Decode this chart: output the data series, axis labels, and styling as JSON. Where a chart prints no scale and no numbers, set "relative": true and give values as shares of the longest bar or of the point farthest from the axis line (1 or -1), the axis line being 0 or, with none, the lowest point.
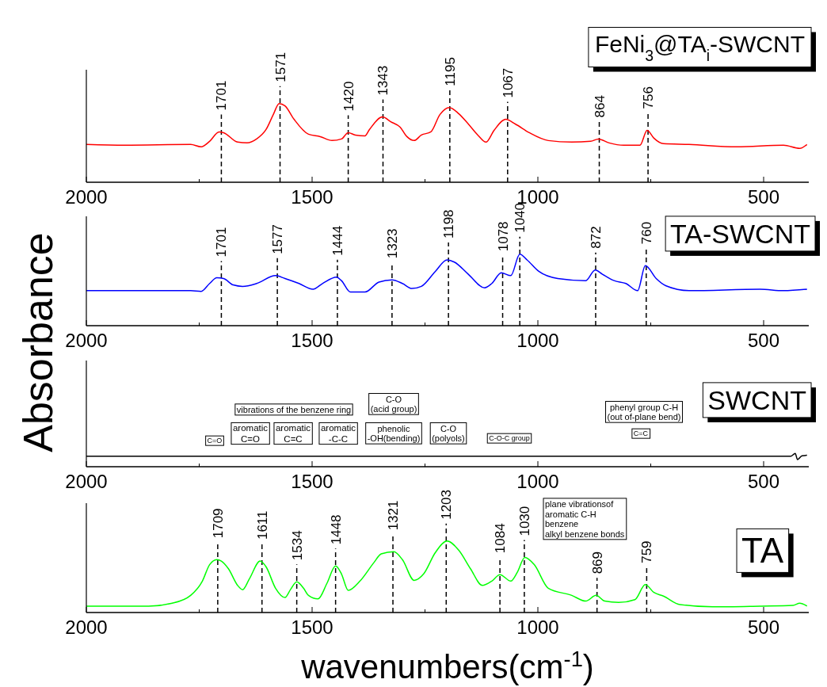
{
  "chart_data": [
    {
      "type": "line",
      "title": "FeNi$_{3}$@TA$_{i}$-SWCNT",
      "ylabel": "Absorbance",
      "relative": true,
      "tick_labels": "x",
      "color": "#ff0000",
      "x": [
        2000,
        1915,
        1769,
        1746,
        1727,
        1706,
        1696,
        1665,
        1644,
        1623,
        1602,
        1586,
        1573,
        1560,
        1540,
        1508,
        1482,
        1456,
        1435,
        1420,
        1404,
        1383,
        1373,
        1344,
        1326,
        1305,
        1290,
        1274,
        1258,
        1237,
        1217,
        1196,
        1175,
        1154,
        1133,
        1115,
        1097,
        1071,
        1050,
        1019,
        977,
        925,
        883,
        866,
        842,
        810,
        774,
        758,
        743,
        722,
        665,
        560,
        456,
        420,
        404
      ],
      "values": [
        0.48,
        0.47,
        0.48,
        0.45,
        0.52,
        0.64,
        0.63,
        0.51,
        0.5,
        0.55,
        0.67,
        0.86,
        1.0,
        0.97,
        0.8,
        0.61,
        0.58,
        0.53,
        0.55,
        0.63,
        0.6,
        0.59,
        0.67,
        0.83,
        0.77,
        0.7,
        0.58,
        0.53,
        0.6,
        0.64,
        0.86,
        0.95,
        0.87,
        0.74,
        0.6,
        0.51,
        0.66,
        0.8,
        0.74,
        0.63,
        0.53,
        0.51,
        0.52,
        0.55,
        0.5,
        0.47,
        0.47,
        0.66,
        0.56,
        0.49,
        0.48,
        0.45,
        0.47,
        0.43,
        0.48
      ],
      "xlim": [
        2000,
        400
      ],
      "xticks": [
        2000,
        {
          "value": 1750,
          "label": null
        },
        1500,
        {
          "value": 1250,
          "label": null
        },
        1000,
        {
          "value": 750,
          "label": null
        },
        500
      ],
      "ref_lines": [
        {
          "axis": "x",
          "value": 1701,
          "label": "1701",
          "line_style": "dashed"
        },
        {
          "axis": "x",
          "value": 1571,
          "label": "1571",
          "line_style": "dashed"
        },
        {
          "axis": "x",
          "value": 1420,
          "label": "1420",
          "line_style": "dashed"
        },
        {
          "axis": "x",
          "value": 1343,
          "label": "1343",
          "line_style": "dashed"
        },
        {
          "axis": "x",
          "value": 1195,
          "label": "1195",
          "line_style": "dashed"
        },
        {
          "axis": "x",
          "value": 1067,
          "label": "1067",
          "line_style": "dashed"
        },
        {
          "axis": "x",
          "value": 864,
          "label": "864",
          "line_style": "dashed"
        },
        {
          "axis": "x",
          "value": 756,
          "label": "756",
          "line_style": "dashed"
        }
      ]
    },
    {
      "type": "line",
      "title": "TA-SWCNT",
      "relative": true,
      "tick_labels": "x",
      "color": "#0000ff",
      "x": [
        2000,
        1769,
        1746,
        1727,
        1711,
        1696,
        1675,
        1654,
        1623,
        1581,
        1560,
        1529,
        1498,
        1477,
        1446,
        1435,
        1415,
        1383,
        1352,
        1323,
        1300,
        1279,
        1258,
        1227,
        1201,
        1185,
        1154,
        1118,
        1102,
        1081,
        1060,
        1040,
        1024,
        998,
        956,
        894,
        873,
        857,
        831,
        805,
        779,
        762,
        738,
        717,
        665,
        508,
        456,
        404
      ],
      "values": [
        0.49,
        0.49,
        0.48,
        0.59,
        0.67,
        0.66,
        0.57,
        0.55,
        0.59,
        0.7,
        0.66,
        0.59,
        0.51,
        0.59,
        0.68,
        0.63,
        0.47,
        0.47,
        0.61,
        0.64,
        0.59,
        0.52,
        0.55,
        0.76,
        0.92,
        0.89,
        0.72,
        0.53,
        0.59,
        0.74,
        0.7,
        1.0,
        0.92,
        0.76,
        0.66,
        0.63,
        0.78,
        0.72,
        0.63,
        0.59,
        0.49,
        0.84,
        0.66,
        0.56,
        0.49,
        0.51,
        0.49,
        0.51
      ],
      "xlim": [
        2000,
        400
      ],
      "xticks": [
        2000,
        {
          "value": 1750,
          "label": null
        },
        1500,
        {
          "value": 1250,
          "label": null
        },
        1000,
        {
          "value": 750,
          "label": null
        },
        500
      ],
      "ref_lines": [
        {
          "axis": "x",
          "value": 1701,
          "label": "1701",
          "line_style": "dashed"
        },
        {
          "axis": "x",
          "value": 1577,
          "label": "1577",
          "line_style": "dashed"
        },
        {
          "axis": "x",
          "value": 1444,
          "label": "1444",
          "line_style": "dashed"
        },
        {
          "axis": "x",
          "value": 1323,
          "label": "1323",
          "line_style": "dashed"
        },
        {
          "axis": "x",
          "value": 1198,
          "label": "1198",
          "line_style": "dashed"
        },
        {
          "axis": "x",
          "value": 1078,
          "label": "1078",
          "line_style": "dashed"
        },
        {
          "axis": "x",
          "value": 1040,
          "label": "1040",
          "line_style": "dashed"
        },
        {
          "axis": "x",
          "value": 872,
          "label": "872",
          "line_style": "dashed"
        },
        {
          "axis": "x",
          "value": 760,
          "label": "760",
          "line_style": "dashed"
        }
      ]
    },
    {
      "type": "line",
      "title": "SWCNT",
      "relative": true,
      "tick_labels": "x",
      "color": "#000000",
      "x": [
        2000,
        1750,
        1500,
        1250,
        1000,
        750,
        600,
        500,
        440,
        430,
        425,
        415,
        404
      ],
      "values": [
        0.79,
        0.79,
        0.79,
        0.79,
        0.79,
        0.79,
        0.79,
        0.79,
        0.79,
        1.0,
        0.54,
        0.82,
        0.86
      ],
      "xlim": [
        2000,
        400
      ],
      "xticks": [
        2000,
        {
          "value": 1750,
          "label": null
        },
        1500,
        {
          "value": 1250,
          "label": null
        },
        1000,
        {
          "value": 750,
          "label": null
        },
        500
      ],
      "annotations": [
        "vibrations of the benzene ring",
        "C-O\n(acid group)",
        "C=O",
        "aromatic\nC=O",
        "aromatic\nC=C",
        "aromatic\n-C-C",
        "phenolic\n-OH(bending)",
        "C-O\n(polyols)",
        "C-O-C group",
        "phenyl group C-H\n(out of-plane bend)",
        "C=C"
      ]
    },
    {
      "type": "line",
      "title": "TA",
      "xlabel": "wavenumbers(cm$^{-1}$)",
      "relative": true,
      "tick_labels": "x",
      "color": "#00ff00",
      "x": [
        2000,
        1862,
        1810,
        1769,
        1743,
        1727,
        1711,
        1701,
        1685,
        1665,
        1654,
        1639,
        1615,
        1602,
        1581,
        1560,
        1548,
        1534,
        1519,
        1508,
        1487,
        1467,
        1448,
        1435,
        1420,
        1394,
        1363,
        1347,
        1319,
        1300,
        1274,
        1253,
        1227,
        1201,
        1175,
        1149,
        1123,
        1102,
        1084,
        1060,
        1045,
        1029,
        1008,
        977,
        925,
        894,
        871,
        852,
        821,
        785,
        762,
        743,
        722,
        685,
        613,
        508,
        435,
        420,
        404
      ],
      "values": [
        0.09,
        0.09,
        0.13,
        0.24,
        0.44,
        0.67,
        0.74,
        0.72,
        0.61,
        0.38,
        0.32,
        0.47,
        0.72,
        0.64,
        0.34,
        0.21,
        0.32,
        0.43,
        0.34,
        0.24,
        0.19,
        0.41,
        0.65,
        0.54,
        0.31,
        0.44,
        0.7,
        0.82,
        0.85,
        0.74,
        0.45,
        0.54,
        0.84,
        1.0,
        0.87,
        0.61,
        0.38,
        0.44,
        0.53,
        0.44,
        0.57,
        0.77,
        0.67,
        0.34,
        0.24,
        0.16,
        0.24,
        0.16,
        0.14,
        0.18,
        0.39,
        0.28,
        0.23,
        0.11,
        0.08,
        0.09,
        0.1,
        0.13,
        0.09
      ],
      "xlim": [
        2000,
        400
      ],
      "xticks": [
        2000,
        {
          "value": 1750,
          "label": null
        },
        1500,
        {
          "value": 1250,
          "label": null
        },
        1000,
        {
          "value": 750,
          "label": null
        },
        500
      ],
      "ref_lines": [
        {
          "axis": "x",
          "value": 1709,
          "label": "1709",
          "line_style": "dashed"
        },
        {
          "axis": "x",
          "value": 1611,
          "label": "1611",
          "line_style": "dashed"
        },
        {
          "axis": "x",
          "value": 1534,
          "label": "1534",
          "line_style": "dashed"
        },
        {
          "axis": "x",
          "value": 1448,
          "label": "1448",
          "line_style": "dashed"
        },
        {
          "axis": "x",
          "value": 1321,
          "label": "1321",
          "line_style": "dashed"
        },
        {
          "axis": "x",
          "value": 1203,
          "label": "1203",
          "line_style": "dashed"
        },
        {
          "axis": "x",
          "value": 1084,
          "label": "1084",
          "line_style": "dashed"
        },
        {
          "axis": "x",
          "value": 1030,
          "label": "1030",
          "line_style": "dashed"
        },
        {
          "axis": "x",
          "value": 869,
          "label": "869",
          "line_style": "dashed"
        },
        {
          "axis": "x",
          "value": 759,
          "label": "759",
          "line_style": "dashed"
        }
      ],
      "annotations": [
        "plane vibrationsof\naromatic C-H\nbenzene\nalkyl benzene bonds"
      ]
    }
  ]
}
